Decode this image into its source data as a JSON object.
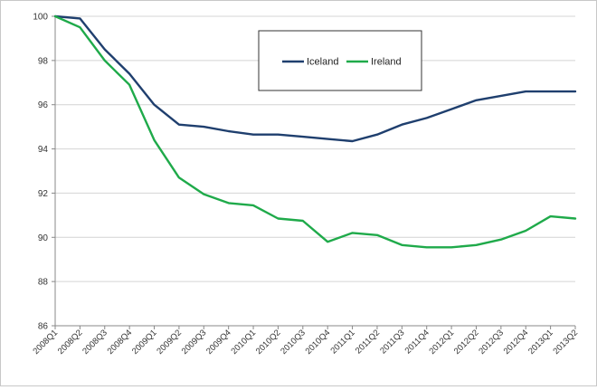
{
  "chart_data": {
    "type": "line",
    "title": "",
    "xlabel": "",
    "ylabel": "",
    "ylim": [
      86,
      100
    ],
    "yticks": [
      86,
      88,
      90,
      92,
      94,
      96,
      98,
      100
    ],
    "grid": "horizontal",
    "legend_position": "top-center",
    "categories": [
      "2008Q1",
      "2008Q2",
      "2008Q3",
      "2008Q4",
      "2009Q1",
      "2009Q2",
      "2009Q3",
      "2009Q4",
      "2010Q1",
      "2010Q2",
      "2010Q3",
      "2010Q4",
      "2011Q1",
      "2011Q2",
      "2011Q3",
      "2011Q4",
      "2012Q1",
      "2012Q2",
      "2012Q3",
      "2012Q4",
      "2013Q1",
      "2013Q2"
    ],
    "series": [
      {
        "name": "Iceland",
        "color": "#1f3f6e",
        "values": [
          100,
          99.9,
          98.5,
          97.4,
          96.0,
          95.1,
          95.0,
          94.8,
          94.65,
          94.65,
          94.55,
          94.45,
          94.35,
          94.65,
          95.1,
          95.4,
          95.8,
          96.2,
          96.4,
          96.6,
          96.6,
          96.6
        ]
      },
      {
        "name": "Ireland",
        "color": "#1faa4a",
        "values": [
          100,
          99.5,
          98.0,
          96.9,
          94.4,
          92.7,
          91.95,
          91.55,
          91.45,
          90.85,
          90.75,
          89.8,
          90.2,
          90.1,
          89.65,
          89.55,
          89.55,
          89.65,
          89.9,
          90.3,
          90.95,
          90.85
        ]
      }
    ]
  }
}
